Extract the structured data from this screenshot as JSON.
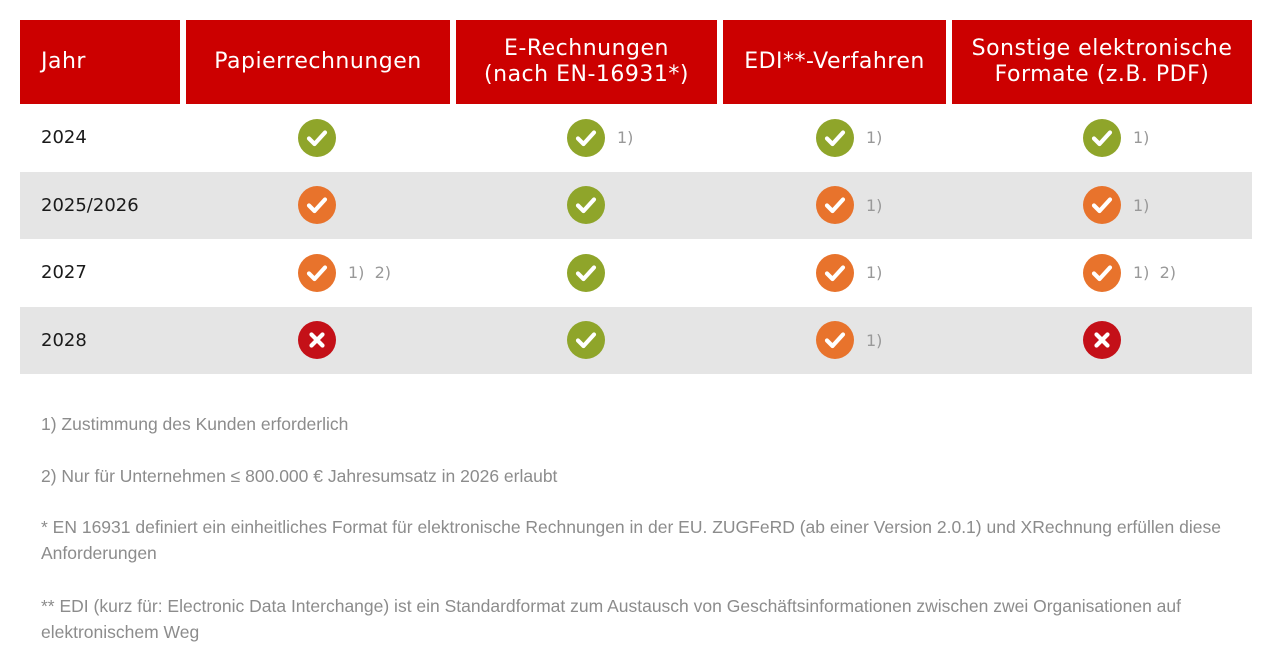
{
  "colors": {
    "header_bg": "#cc0000",
    "green": "#8fa52a",
    "orange": "#e8732c",
    "red": "#c41018"
  },
  "headers": [
    "Jahr",
    "Papierrechnungen",
    "E-Rechnungen\n(nach EN-16931*)",
    "EDI**-Verfahren",
    "Sonstige elektronische\nFormate (z.B. PDF)"
  ],
  "rows": [
    {
      "year": "2024",
      "cells": [
        {
          "status": "green-check",
          "note": ""
        },
        {
          "status": "green-check",
          "note": "1)"
        },
        {
          "status": "green-check",
          "note": "1)"
        },
        {
          "status": "green-check",
          "note": "1)"
        }
      ]
    },
    {
      "year": "2025/2026",
      "cells": [
        {
          "status": "orange-check",
          "note": ""
        },
        {
          "status": "green-check",
          "note": ""
        },
        {
          "status": "orange-check",
          "note": "1)"
        },
        {
          "status": "orange-check",
          "note": "1)"
        }
      ]
    },
    {
      "year": "2027",
      "cells": [
        {
          "status": "orange-check",
          "note": "1)  2)"
        },
        {
          "status": "green-check",
          "note": ""
        },
        {
          "status": "orange-check",
          "note": "1)"
        },
        {
          "status": "orange-check",
          "note": "1)  2)"
        }
      ]
    },
    {
      "year": "2028",
      "cells": [
        {
          "status": "red-cross",
          "note": ""
        },
        {
          "status": "green-check",
          "note": ""
        },
        {
          "status": "orange-check",
          "note": "1)"
        },
        {
          "status": "red-cross",
          "note": ""
        }
      ]
    }
  ],
  "footnotes": [
    "1) Zustimmung des Kunden erforderlich",
    "2) Nur für Unternehmen ≤ 800.000 € Jahresumsatz in 2026 erlaubt",
    "* EN 16931 definiert ein einheitliches Format für elektronische Rechnungen in der EU. ZUGFeRD (ab einer Version 2.0.1) und XRechnung erfüllen diese Anforderungen",
    "** EDI (kurz für: Electronic Data Interchange) ist ein Standardformat zum Austausch von Geschäftsinformationen zwischen zwei Organisationen auf elektronischem Weg"
  ]
}
